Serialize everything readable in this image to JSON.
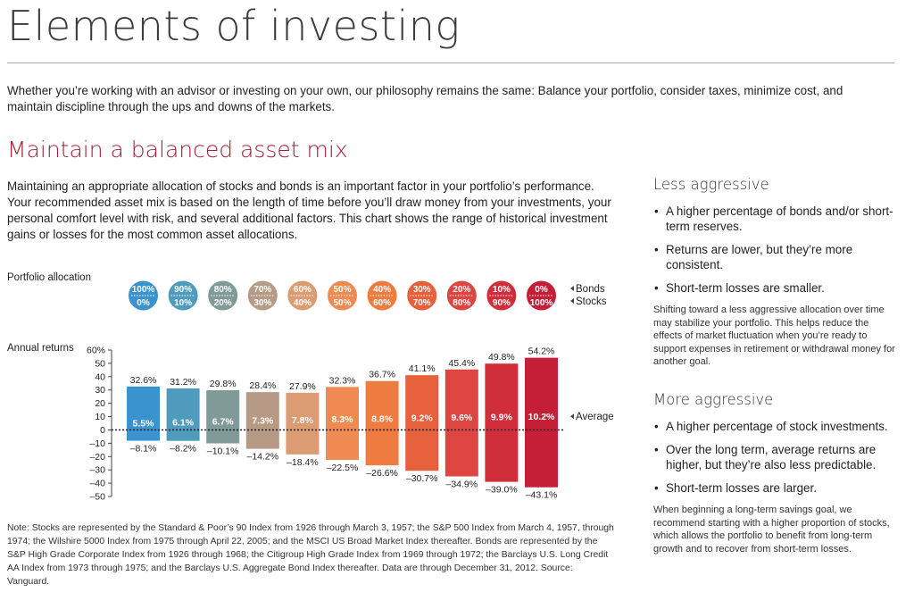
{
  "page": {
    "title": "Elements of investing",
    "intro": "Whether you’re working with an advisor or investing on your own, our philosophy remains the same: Balance your portfolio, consider taxes, minimize cost, and maintain discipline through the ups and downs of the markets.",
    "section_title": "Maintain a balanced asset mix",
    "section_body": "Maintaining an appropriate allocation of stocks and bonds is an important factor in your portfolio’s performance. Your recommended asset mix is based on the length of time before you’ll draw money from your investments, your personal comfort level with risk, and several additional factors. This chart shows the range of historical investment gains or losses for the most common asset allocations.",
    "note": "Note: Stocks are represented by the Standard & Poor’s 90 Index from 1926 through March 3, 1957; the S&P 500 Index from March 4, 1957, through 1974; the Wilshire 5000 Index from 1975 through April 22, 2005; and the MSCI US Broad Market Index thereafter. Bonds are represented by the S&P High Grade Corporate Index from 1926 through 1968; the Citigroup High Grade Index from 1969 through 1972; the Barclays U.S. Long Credit AA Index from 1973 through 1975; and the Barclays U.S. Aggregate Bond Index thereafter. Data are through December 31, 2012. Source: Vanguard."
  },
  "sidebar": {
    "less": {
      "title": "Less aggressive",
      "bullets": [
        "A higher percentage of bonds and/or short-term reserves.",
        "Returns are lower, but they’re more consistent.",
        "Short-term losses are smaller."
      ],
      "paragraph": "Shifting toward a less aggressive allocation over time may stabilize your portfolio. This helps reduce the effects of market fluctuation when you’re ready to support expenses in retirement or withdrawal money for another goal."
    },
    "more": {
      "title": "More aggressive",
      "bullets": [
        "A higher percentage of stock investments.",
        "Over the long term, average returns are higher, but they’re also less predictable.",
        "Short-term losses are larger."
      ],
      "paragraph": "When beginning a long-term savings goal, we recommend starting with a higher proportion of stocks, which allows the portfolio to benefit from long-term growth and to recover from short-term losses."
    }
  },
  "chart_data": {
    "type": "bar",
    "portfolio_label": "Portfolio allocation",
    "returns_label": "Annual returns",
    "categories": [
      "100% bonds / 0% stocks",
      "90% / 10%",
      "80% / 20%",
      "70% / 30%",
      "60% / 40%",
      "50% / 50%",
      "40% / 60%",
      "30% / 70%",
      "20% / 80%",
      "10% / 90%",
      "0% / 100%"
    ],
    "bonds": [
      "100%",
      "90%",
      "80%",
      "70%",
      "60%",
      "50%",
      "40%",
      "30%",
      "20%",
      "10%",
      "0%"
    ],
    "stocks": [
      "0%",
      "10%",
      "20%",
      "30%",
      "40%",
      "50%",
      "60%",
      "70%",
      "80%",
      "90%",
      "100%"
    ],
    "max_values": [
      32.6,
      31.2,
      29.8,
      28.4,
      27.9,
      32.3,
      36.7,
      41.1,
      45.4,
      49.8,
      54.2
    ],
    "min_values": [
      -8.1,
      -8.2,
      -10.1,
      -14.2,
      -18.4,
      -22.5,
      -26.6,
      -30.7,
      -34.9,
      -39.0,
      -43.1
    ],
    "average_values": [
      5.5,
      6.1,
      6.7,
      7.3,
      7.8,
      8.3,
      8.8,
      9.2,
      9.6,
      9.9,
      10.2
    ],
    "max_labels": [
      "32.6%",
      "31.2%",
      "29.8%",
      "28.4%",
      "27.9%",
      "32.3%",
      "36.7%",
      "41.1%",
      "45.4%",
      "49.8%",
      "54.2%"
    ],
    "min_labels": [
      "–8.1%",
      "–8.2%",
      "–10.1%",
      "–14.2%",
      "–18.4%",
      "–22.5%",
      "–26.6%",
      "–30.7%",
      "–34.9%",
      "–39.0%",
      "–43.1%"
    ],
    "average_labels": [
      "5.5%",
      "6.1%",
      "6.7%",
      "7.3%",
      "7.8%",
      "8.3%",
      "8.8%",
      "9.2%",
      "9.6%",
      "9.9%",
      "10.2%"
    ],
    "colors": [
      "#3a93cf",
      "#4f9bbd",
      "#7f9a97",
      "#b69a85",
      "#db9b73",
      "#ef8a52",
      "#ee7b3f",
      "#e6603c",
      "#dc4540",
      "#d12e3b",
      "#c51f38"
    ],
    "y_ticks": [
      60,
      50,
      40,
      30,
      20,
      10,
      0,
      -10,
      -20,
      -30,
      -40,
      -50
    ],
    "y_tick_labels": [
      "60%",
      "50",
      "40",
      "30",
      "20",
      "10",
      "0",
      "–10",
      "–20",
      "–30",
      "–40",
      "–50"
    ],
    "ylim": [
      -50,
      60
    ],
    "legend": {
      "bonds": "Bonds",
      "stocks": "Stocks",
      "average": "Average"
    }
  }
}
